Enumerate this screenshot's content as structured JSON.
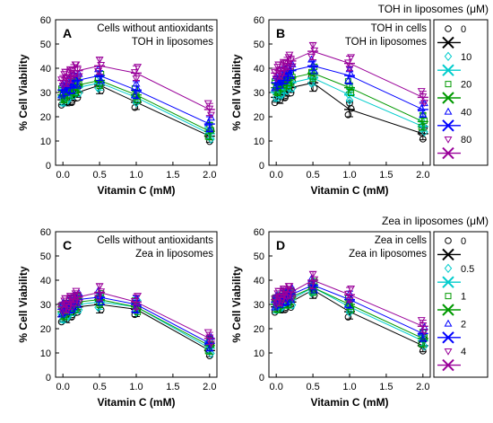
{
  "colors": {
    "series": [
      "#000000",
      "#00cccc",
      "#009900",
      "#0000ff",
      "#990099"
    ],
    "markers": [
      "circle",
      "diamond",
      "square",
      "triangle-up",
      "triangle-down"
    ]
  },
  "legends": [
    {
      "title": "TOH in liposomes (μM)",
      "labels": [
        "0",
        "10",
        "20",
        "40",
        "80"
      ]
    },
    {
      "title": "Zea in liposomes (μM)",
      "labels": [
        "0",
        "0.5",
        "1",
        "2",
        "4"
      ]
    }
  ],
  "chart_data": [
    {
      "panel": "A",
      "type": "line",
      "annotation": [
        "Cells without antioxidants",
        "TOH in liposomes"
      ],
      "xlabel": "Vitamin C (mM)",
      "ylabel": "% Cell Viability",
      "xlim": [
        -0.1,
        2.1
      ],
      "ylim": [
        0,
        60
      ],
      "xticks": [
        "0.0",
        "0.5",
        "1.0",
        "1.5",
        "2.0"
      ],
      "yticks": [
        "0",
        "10",
        "20",
        "30",
        "40",
        "50",
        "60"
      ],
      "x": [
        0,
        0.05,
        0.1,
        0.15,
        0.2,
        0.5,
        1.0,
        2.0
      ],
      "series": [
        {
          "name": "0",
          "values": [
            27,
            28,
            28,
            29,
            30,
            33,
            26,
            12
          ]
        },
        {
          "name": "10",
          "values": [
            28,
            29,
            30,
            31,
            32,
            34,
            28,
            13
          ]
        },
        {
          "name": "20",
          "values": [
            29,
            30,
            31,
            32,
            33,
            35,
            29,
            14
          ]
        },
        {
          "name": "40",
          "values": [
            31,
            32,
            33,
            35,
            35,
            37,
            31,
            17
          ]
        },
        {
          "name": "80",
          "values": [
            35,
            36,
            37,
            39,
            39,
            41,
            38,
            23
          ]
        }
      ]
    },
    {
      "panel": "B",
      "type": "line",
      "annotation": [
        "TOH in cells",
        "TOH in liposomes"
      ],
      "xlabel": "Vitamin C (mM)",
      "ylabel": "% Cell Viability",
      "xlim": [
        -0.1,
        2.1
      ],
      "ylim": [
        0,
        60
      ],
      "xticks": [
        "0.0",
        "0.5",
        "1.0",
        "1.5",
        "2.0"
      ],
      "yticks": [
        "0",
        "10",
        "20",
        "30",
        "40",
        "50",
        "60"
      ],
      "x": [
        0,
        0.05,
        0.1,
        0.15,
        0.2,
        0.5,
        1.0,
        2.0
      ],
      "series": [
        {
          "name": "0",
          "values": [
            28,
            29,
            30,
            31,
            32,
            34,
            23,
            13
          ]
        },
        {
          "name": "10",
          "values": [
            30,
            31,
            32,
            33,
            34,
            36,
            29,
            16
          ]
        },
        {
          "name": "20",
          "values": [
            32,
            33,
            34,
            35,
            36,
            38,
            32,
            18
          ]
        },
        {
          "name": "40",
          "values": [
            34,
            35,
            37,
            38,
            39,
            41,
            37,
            23
          ]
        },
        {
          "name": "80",
          "values": [
            38,
            39,
            40,
            42,
            43,
            47,
            42,
            28
          ]
        }
      ]
    },
    {
      "panel": "C",
      "type": "line",
      "annotation": [
        "Cells without antioxidants",
        "Zea in liposomes"
      ],
      "xlabel": "Vitamin C (mM)",
      "ylabel": "% Cell Viability",
      "xlim": [
        -0.1,
        2.1
      ],
      "ylim": [
        0,
        60
      ],
      "xticks": [
        "0.0",
        "0.5",
        "1.0",
        "1.5",
        "2.0"
      ],
      "yticks": [
        "0",
        "10",
        "20",
        "30",
        "40",
        "50",
        "60"
      ],
      "x": [
        0,
        0.05,
        0.1,
        0.15,
        0.2,
        0.5,
        1.0,
        2.0
      ],
      "series": [
        {
          "name": "0",
          "values": [
            25,
            26,
            27,
            28,
            29,
            30,
            28,
            11
          ]
        },
        {
          "name": "0.5",
          "values": [
            26,
            27,
            28,
            29,
            30,
            31,
            29,
            12
          ]
        },
        {
          "name": "1",
          "values": [
            27,
            28,
            29,
            30,
            31,
            32,
            29,
            13
          ]
        },
        {
          "name": "2",
          "values": [
            28,
            29,
            30,
            31,
            32,
            33,
            30,
            14
          ]
        },
        {
          "name": "4",
          "values": [
            29,
            30,
            31,
            32,
            33,
            35,
            31,
            16
          ]
        }
      ]
    },
    {
      "panel": "D",
      "type": "line",
      "annotation": [
        "Zea in cells",
        "Zea in liposomes"
      ],
      "xlabel": "Vitamin C (mM)",
      "ylabel": "% Cell Viability",
      "xlim": [
        -0.1,
        2.1
      ],
      "ylim": [
        0,
        60
      ],
      "xticks": [
        "0.0",
        "0.5",
        "1.0",
        "1.5",
        "2.0"
      ],
      "yticks": [
        "0",
        "10",
        "20",
        "30",
        "40",
        "50",
        "60"
      ],
      "x": [
        0,
        0.05,
        0.1,
        0.15,
        0.2,
        0.5,
        1.0,
        2.0
      ],
      "series": [
        {
          "name": "0",
          "values": [
            29,
            30,
            30,
            31,
            31,
            36,
            27,
            13
          ]
        },
        {
          "name": "0.5",
          "values": [
            30,
            31,
            31,
            32,
            32,
            37,
            29,
            15
          ]
        },
        {
          "name": "1",
          "values": [
            30,
            31,
            32,
            32,
            33,
            37,
            30,
            16
          ]
        },
        {
          "name": "2",
          "values": [
            31,
            32,
            33,
            33,
            34,
            38,
            32,
            18
          ]
        },
        {
          "name": "4",
          "values": [
            32,
            33,
            34,
            35,
            35,
            40,
            34,
            21
          ]
        }
      ]
    }
  ]
}
